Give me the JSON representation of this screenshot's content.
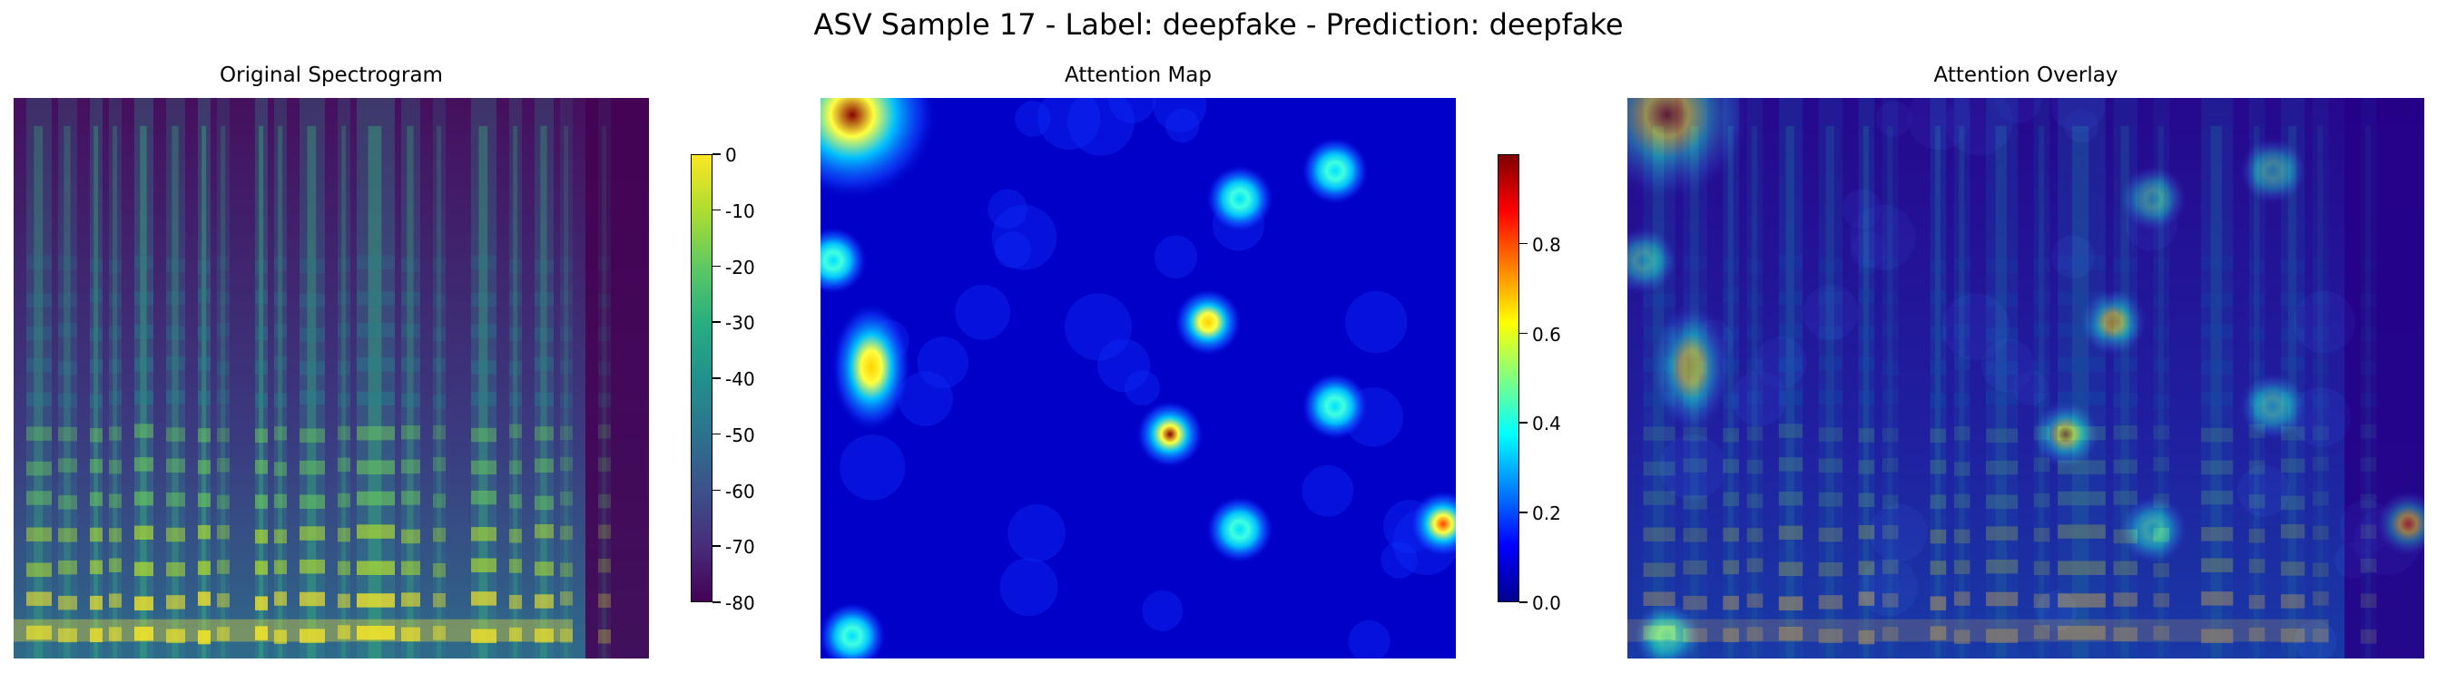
{
  "chart_data": [
    {
      "type": "heatmap",
      "title": "Original Spectrogram",
      "colormap": "viridis",
      "colorbar": {
        "min": -80,
        "max": 0,
        "ticks": [
          0,
          -10,
          -20,
          -30,
          -40,
          -50,
          -60,
          -70,
          -80
        ]
      },
      "axes": "off"
    },
    {
      "type": "heatmap",
      "title": "Attention Map",
      "colormap": "jet",
      "colorbar": {
        "min": 0.0,
        "max": 1.0,
        "ticks": [
          "0.8",
          "0.6",
          "0.4",
          "0.2",
          "0.0"
        ]
      },
      "axes": "off",
      "hotspots": [
        {
          "x": 0.05,
          "y": 0.03,
          "value": 1.0
        },
        {
          "x": 0.61,
          "y": 0.4,
          "value": 0.6
        },
        {
          "x": 0.55,
          "y": 0.6,
          "value": 0.95
        },
        {
          "x": 0.81,
          "y": 0.55,
          "value": 0.45
        },
        {
          "x": 0.08,
          "y": 0.48,
          "value": 0.5
        },
        {
          "x": 0.66,
          "y": 0.18,
          "value": 0.35
        },
        {
          "x": 0.81,
          "y": 0.13,
          "value": 0.35
        },
        {
          "x": 0.02,
          "y": 0.29,
          "value": 0.3
        },
        {
          "x": 0.98,
          "y": 0.76,
          "value": 0.65
        },
        {
          "x": 0.66,
          "y": 0.77,
          "value": 0.25
        },
        {
          "x": 0.05,
          "y": 0.96,
          "value": 0.25
        }
      ]
    },
    {
      "type": "heatmap",
      "title": "Attention Overlay",
      "axes": "off"
    }
  ],
  "figure": {
    "suptitle": "ASV Sample 17 - Label: deepfake - Prediction: deepfake"
  },
  "colors": {
    "viridis_dark": "#440154",
    "viridis_yellow": "#fde725",
    "jet_blue": "#00008f",
    "jet_red": "#800000"
  }
}
